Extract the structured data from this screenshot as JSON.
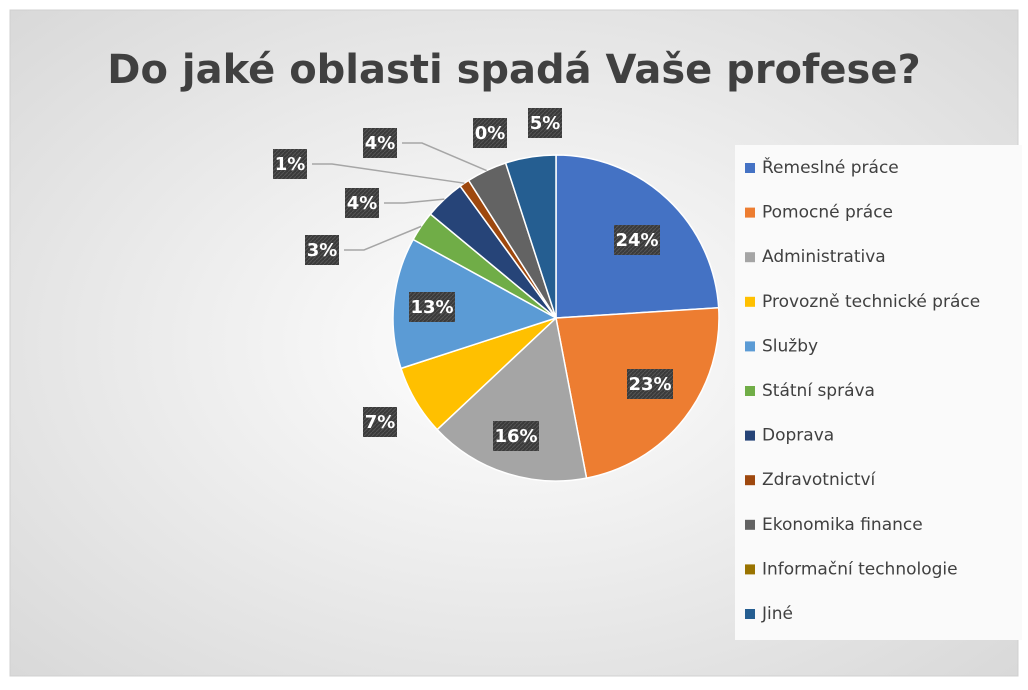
{
  "chart_data": {
    "type": "pie",
    "title": "Do jaké oblasti spadá Vaše profese?",
    "categories": [
      "Řemeslné práce",
      "Pomocné práce",
      "Administrativa",
      "Provozně technické práce",
      "Služby",
      "Státní správa",
      "Doprava",
      "Zdravotnictví",
      "Ekonomika finance",
      "Informační technologie",
      "Jiné"
    ],
    "values": [
      24,
      23,
      16,
      7,
      13,
      3,
      4,
      1,
      4,
      0,
      5
    ],
    "value_labels": [
      "24%",
      "23%",
      "16%",
      "7%",
      "13%",
      "3%",
      "4%",
      "1%",
      "4%",
      "0%",
      "5%"
    ],
    "colors": [
      "#4472c4",
      "#ed7d31",
      "#a5a5a5",
      "#ffc000",
      "#5b9bd5",
      "#70ad47",
      "#264478",
      "#9e480e",
      "#636363",
      "#997300",
      "#255e91"
    ],
    "legend": "right"
  }
}
